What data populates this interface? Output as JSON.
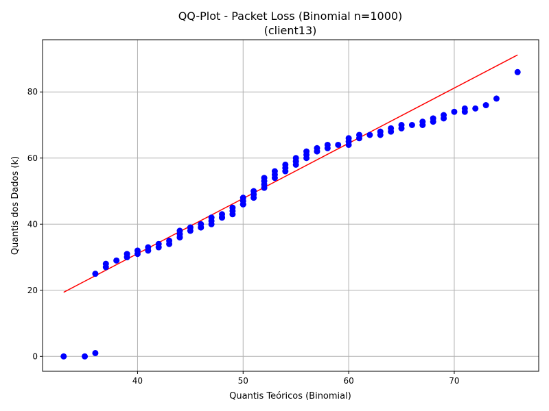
{
  "chart_data": {
    "type": "scatter",
    "title": "QQ-Plot - Packet Loss (Binomial n=1000)",
    "subtitle": "(client13)",
    "xlabel": "Quantis Teóricos (Binomial)",
    "ylabel": "Quantis dos Dados (k)",
    "xlim": [
      31,
      78
    ],
    "ylim": [
      -4.5,
      95.8
    ],
    "xticks": [
      40,
      50,
      60,
      70
    ],
    "yticks": [
      0,
      20,
      40,
      60,
      80
    ],
    "grid": true,
    "colors": {
      "points": "#0000ff",
      "reference_line": "#ff0000",
      "grid": "#b0b0b0"
    },
    "reference_line": {
      "x": [
        33,
        76
      ],
      "y": [
        19.4,
        91.2
      ]
    },
    "points": {
      "x": [
        33,
        35,
        36,
        36,
        37,
        37,
        38,
        39,
        39,
        40,
        40,
        41,
        41,
        42,
        42,
        43,
        43,
        44,
        44,
        44,
        45,
        45,
        46,
        46,
        47,
        47,
        47,
        48,
        48,
        48,
        49,
        49,
        49,
        50,
        50,
        50,
        50,
        51,
        51,
        51,
        52,
        52,
        52,
        52,
        53,
        53,
        53,
        54,
        54,
        54,
        55,
        55,
        55,
        56,
        56,
        56,
        57,
        57,
        58,
        58,
        59,
        60,
        60,
        60,
        61,
        61,
        62,
        63,
        63,
        64,
        64,
        65,
        65,
        66,
        67,
        67,
        68,
        68,
        69,
        69,
        70,
        71,
        71,
        72,
        73,
        74,
        76
      ],
      "y": [
        0,
        0,
        1,
        25,
        27,
        28,
        29,
        30,
        31,
        31,
        32,
        32,
        33,
        33,
        34,
        34,
        35,
        36,
        37,
        38,
        38,
        39,
        39,
        40,
        40,
        41,
        42,
        42,
        43,
        42,
        43,
        44,
        45,
        46,
        47,
        48,
        46,
        48,
        49,
        50,
        51,
        52,
        53,
        54,
        54,
        55,
        56,
        56,
        57,
        58,
        58,
        59,
        60,
        60,
        61,
        62,
        62,
        63,
        63,
        64,
        64,
        64,
        65,
        66,
        66,
        67,
        67,
        67,
        68,
        68,
        69,
        69,
        70,
        70,
        70,
        71,
        71,
        72,
        72,
        73,
        74,
        74,
        75,
        75,
        76,
        78,
        86
      ]
    }
  }
}
